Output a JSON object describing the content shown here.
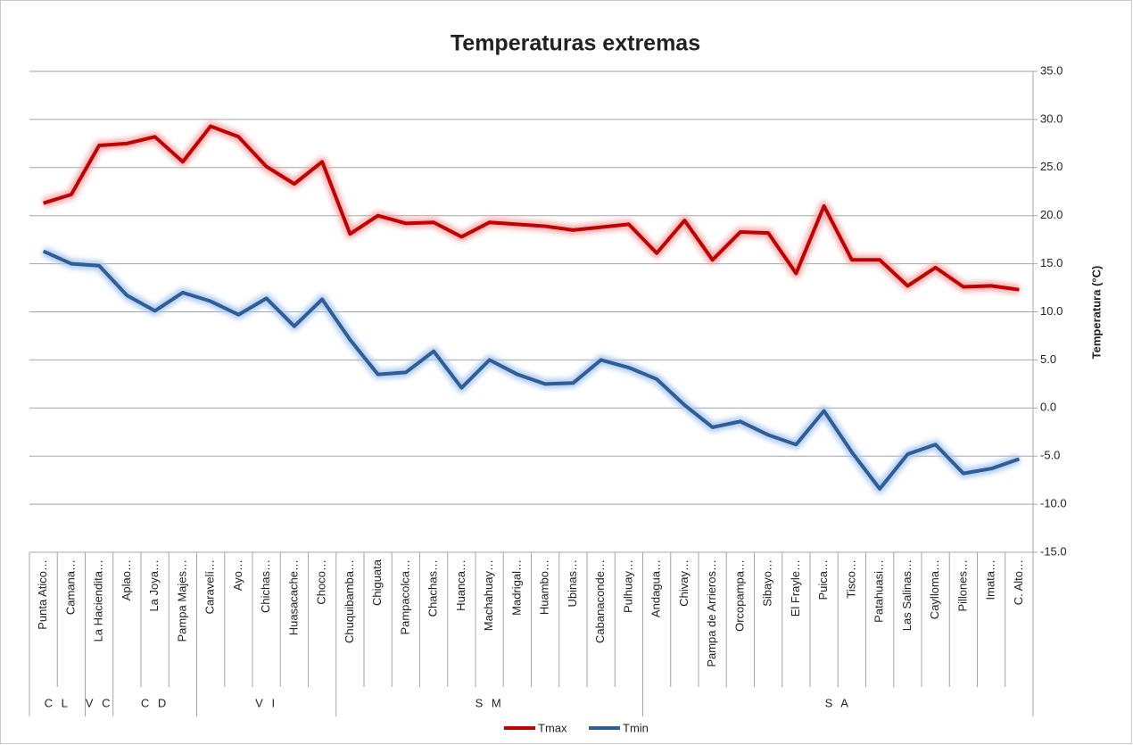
{
  "chart_data": {
    "type": "line",
    "title": "Temperaturas extremas",
    "y_axis_label": "Temperatura (°C)",
    "categories": [
      "Punta Atico…",
      "Camana…",
      "La Haciendita…",
      "Aplao…",
      "La Joya…",
      "Pampa Majes…",
      "Caravelí…",
      "Ayo…",
      "Chichas…",
      "Huasacache…",
      "Choco…",
      "Chuquibamba…",
      "Chiguata",
      "Pampacolca…",
      "Chachas…",
      "Huanca…",
      "Machahuay…",
      "Madrigal…",
      "Huambo…",
      "Ubinas…",
      "Cabanaconde…",
      "Pulhuay…",
      "Andagua…",
      "Chivay…",
      "Pampa de Arrieros…",
      "Orcopampa…",
      "Sibayo…",
      "El Frayle…",
      "Puica…",
      "Tisco…",
      "Patahuasi…",
      "Las Salinas…",
      "Caylloma…",
      "Pillones…",
      "Imata…",
      "C. Alto…"
    ],
    "groups": [
      {
        "label": "C L",
        "count": 2
      },
      {
        "label": "V C",
        "count": 1
      },
      {
        "label": "C D",
        "count": 3
      },
      {
        "label": "V I",
        "count": 5
      },
      {
        "label": "S M",
        "count": 11
      },
      {
        "label": "S A",
        "count": 14
      }
    ],
    "series": [
      {
        "name": "Tmax",
        "color": "#c00000",
        "glow": "#f4a6a6",
        "values": [
          21.3,
          22.2,
          27.3,
          27.5,
          28.2,
          25.6,
          29.3,
          28.2,
          25.1,
          23.3,
          25.6,
          18.1,
          20.0,
          19.2,
          19.3,
          17.8,
          19.3,
          19.1,
          18.9,
          18.5,
          18.8,
          19.1,
          16.1,
          19.5,
          15.4,
          18.3,
          18.2,
          14.0,
          21.0,
          15.4,
          15.4,
          12.7,
          14.6,
          12.6,
          12.7,
          12.3
        ]
      },
      {
        "name": "Tmin",
        "color": "#2f5d95",
        "glow": "#a9c8ef",
        "values": [
          16.3,
          15.0,
          14.8,
          11.7,
          10.1,
          12.0,
          11.1,
          9.7,
          11.4,
          8.5,
          11.3,
          7.1,
          3.5,
          3.7,
          5.9,
          2.1,
          5.0,
          3.5,
          2.5,
          2.6,
          5.0,
          4.2,
          3.0,
          0.3,
          -2.0,
          -1.4,
          -2.8,
          -3.8,
          -0.3,
          -4.6,
          -8.4,
          -4.8,
          -3.8,
          -6.8,
          -6.3,
          -5.3
        ]
      }
    ],
    "ylim": [
      -15,
      35
    ],
    "yticks": [
      {
        "value": -15,
        "label": "-15.0"
      },
      {
        "value": -10,
        "label": "-10.0"
      },
      {
        "value": -5,
        "label": "-5.0"
      },
      {
        "value": 0,
        "label": "0.0"
      },
      {
        "value": 5,
        "label": "5.0"
      },
      {
        "value": 10,
        "label": "10.0"
      },
      {
        "value": 15,
        "label": "15.0"
      },
      {
        "value": 20,
        "label": "20.0"
      },
      {
        "value": 25,
        "label": "25.0"
      },
      {
        "value": 30,
        "label": "30.0"
      },
      {
        "value": 35,
        "label": "35.0"
      }
    ],
    "grid": true,
    "legend": "bottom"
  }
}
